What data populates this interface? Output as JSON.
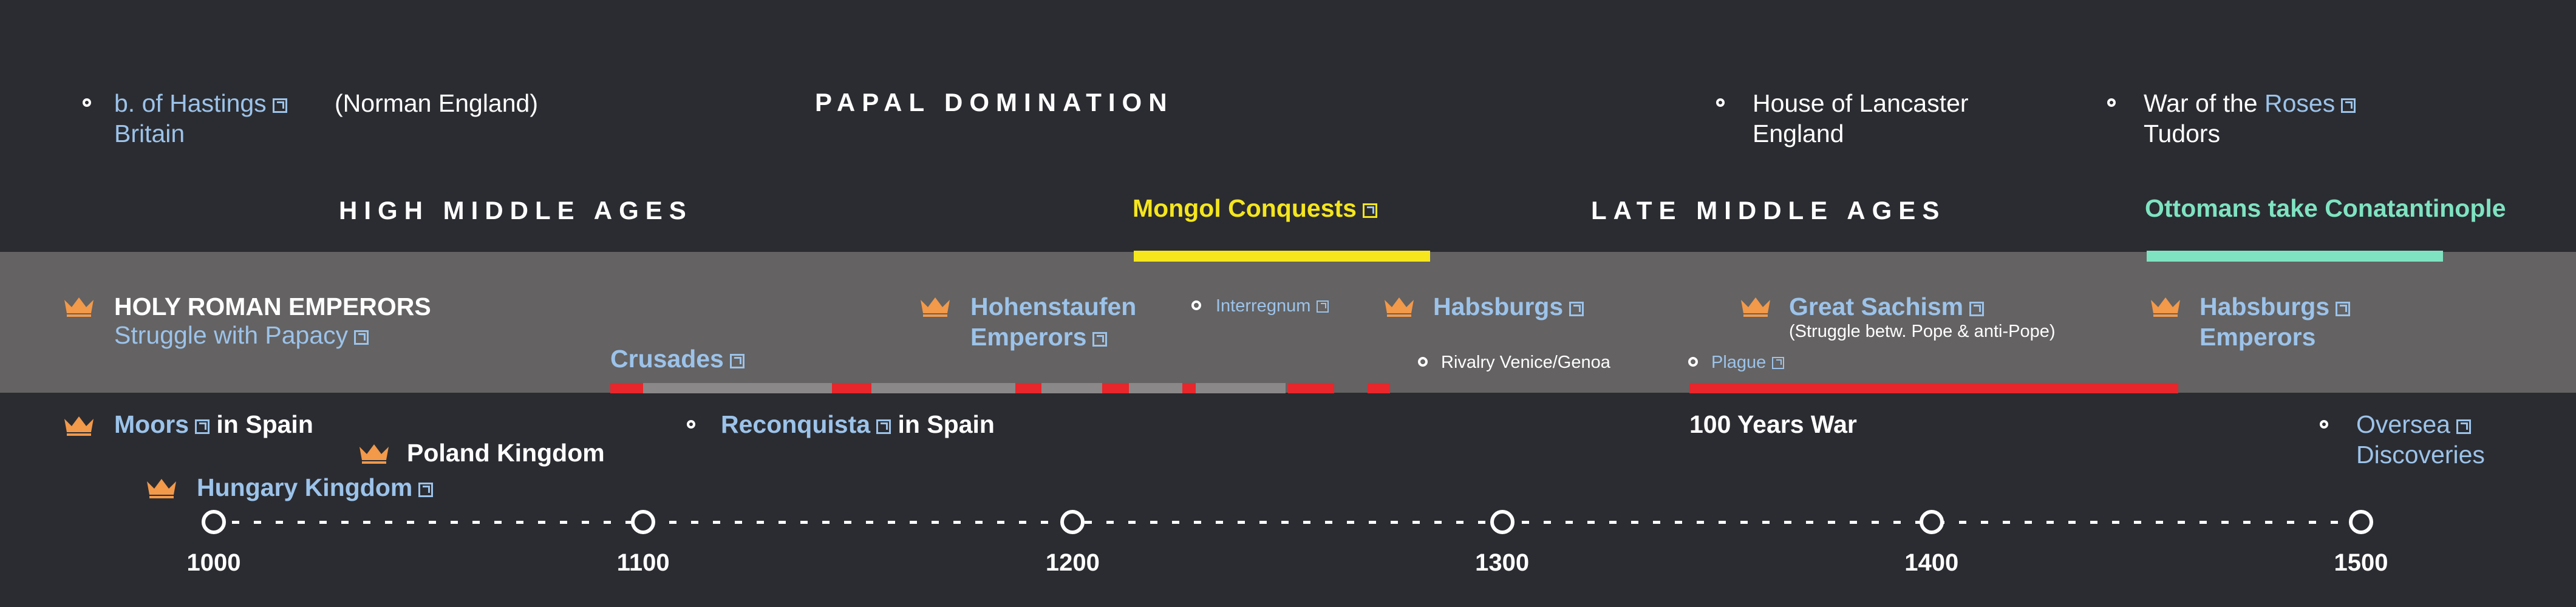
{
  "eras": {
    "papal": "PAPAL DOMINATION",
    "high": "HIGH MIDDLE AGES",
    "late": "LATE MIDDLE AGES"
  },
  "top_events": {
    "hastings_link": "b. of Hastings",
    "hastings_sub": "Britain",
    "norman": "(Norman England)",
    "lancaster_1": "House of Lancaster",
    "lancaster_2": "England",
    "roses_pre": "War of the",
    "roses_link": "Roses",
    "roses_sub": "Tudors",
    "mongol": "Mongol Conquests",
    "ottomans": "Ottomans take Conatantinople"
  },
  "band": {
    "hre_title": "HOLY ROMAN EMPERORS",
    "hre_sub": "Struggle with Papacy",
    "crusades": "Crusades",
    "hohen_1": "Hohenstaufen",
    "hohen_2": "Emperors",
    "interregnum": "Interregnum",
    "habsburgs_1": "Habsburgs",
    "rivalry": "Rivalry Venice/Genoa",
    "great_schism": "Great Sachism",
    "schism_sub": "(Struggle betw. Pope & anti-Pope)",
    "plague": "Plague",
    "habsburgs_2a": "Habsburgs",
    "habsburgs_2b": "Emperors"
  },
  "lower": {
    "moors_link": "Moors",
    "moors_rest": "in Spain",
    "poland": "Poland Kingdom",
    "hungary": "Hungary Kingdom",
    "reconquista_link": "Reconquista",
    "reconquista_rest": "in Spain",
    "hundred": "100 Years War",
    "oversea_1": "Oversea",
    "oversea_2": "Discoveries"
  },
  "axis": {
    "ticks": [
      "1000",
      "1100",
      "1200",
      "1300",
      "1400",
      "1500"
    ],
    "years": [
      1000,
      1100,
      1200,
      1300,
      1400,
      1500
    ]
  },
  "colors": {
    "background": "#2b2c31",
    "band": "#646262",
    "link": "#9cc3ea",
    "crown": "#f2994a",
    "mongol": "#f5e61d",
    "ottoman": "#7fe3c1",
    "red": "#e8262b",
    "grey_bar": "#8a8888"
  },
  "icons": [
    "crown-icon",
    "external-link-icon",
    "circle-marker-icon"
  ]
}
